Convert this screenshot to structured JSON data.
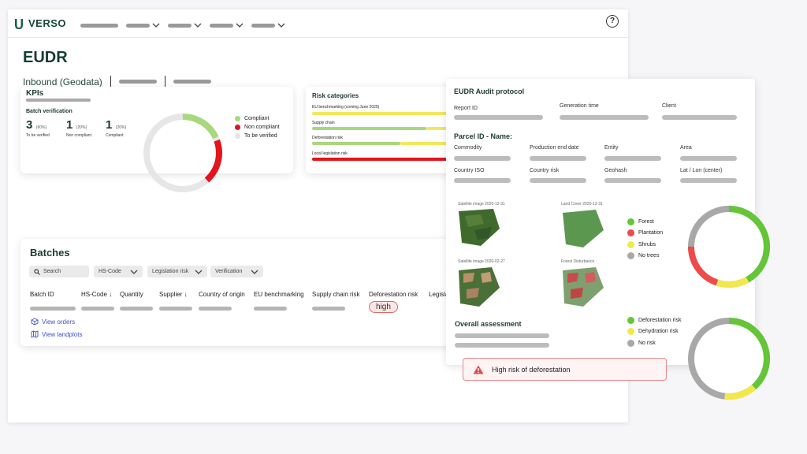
{
  "app": {
    "name": "VERSO",
    "help_glyph": "?"
  },
  "page": {
    "title": "EUDR",
    "subtitle": "Inbound (Geodata)"
  },
  "kpis": {
    "title": "KPIs",
    "batch_verification": "Batch verification",
    "stats": [
      {
        "count": "3",
        "pct": "(60%)",
        "label": "To be verified"
      },
      {
        "count": "1",
        "pct": "(20%)",
        "label": "Non compliant"
      },
      {
        "count": "1",
        "pct": "(20%)",
        "label": "Compliant"
      }
    ],
    "legend": [
      {
        "label": "Compliant",
        "color": "#a6d97c"
      },
      {
        "label": "Non compliant",
        "color": "#e3141b"
      },
      {
        "label": "To be verified",
        "color": "#e4e4e4"
      }
    ],
    "donut_fractions": {
      "compliant": 0.2,
      "non_compliant": 0.2,
      "to_be_verified": 0.6
    }
  },
  "risk": {
    "title": "Risk categories",
    "rows": [
      {
        "label": "EU benchmarking (coming June 2025)",
        "color": "#f2e85b"
      },
      {
        "label": "Supply chain",
        "color": "#a6d97c"
      },
      {
        "label": "Deforestation risk",
        "color": "#a6d97c"
      },
      {
        "label": "Local legislation risk",
        "color": "#e3141b"
      }
    ]
  },
  "batches": {
    "title": "Batches",
    "search_placeholder": "Search",
    "filters": [
      "HS-Code",
      "Legislation risk",
      "Verification"
    ],
    "columns": [
      "Batch ID",
      "HS-Code",
      "Quantity",
      "Supplier",
      "Country of origin",
      "EU benchmarking",
      "Supply chain risk",
      "Deforestation risk",
      "Legisla"
    ],
    "deforestation_value": "high",
    "links": {
      "view_orders": "View orders",
      "view_landplots": "View landplots"
    }
  },
  "audit": {
    "title": "EUDR Audit protocol",
    "header_fields": [
      "Report ID",
      "Generation time",
      "Client"
    ],
    "parcel_heading": "Parcel ID - Name:",
    "parcel_fields_row1": [
      "Commodity",
      "Production end date",
      "Entity",
      "Area"
    ],
    "parcel_fields_row2": [
      "Country ISO",
      "Country risk",
      "Geohash",
      "Lat / Lon (center)"
    ],
    "images": [
      {
        "caption": "Satellite image 2020-12-31"
      },
      {
        "caption": "Land Cover 2020-12-31"
      },
      {
        "caption": "Satellite image 2020-02-27"
      },
      {
        "caption": "Forest Disturbance"
      }
    ],
    "landcover_legend": [
      {
        "label": "Forest",
        "color": "#63c537"
      },
      {
        "label": "Plantation",
        "color": "#ee4b4b"
      },
      {
        "label": "Shrubs",
        "color": "#f2e84a"
      },
      {
        "label": "No trees",
        "color": "#a8a8a8"
      }
    ],
    "overall_heading": "Overall assessment",
    "assessment_legend": [
      {
        "label": "Deforestation risk",
        "color": "#63c537"
      },
      {
        "label": "Dehydration risk",
        "color": "#f2e84a"
      },
      {
        "label": "No risk",
        "color": "#a8a8a8"
      }
    ],
    "alert": "High risk of deforestation"
  }
}
